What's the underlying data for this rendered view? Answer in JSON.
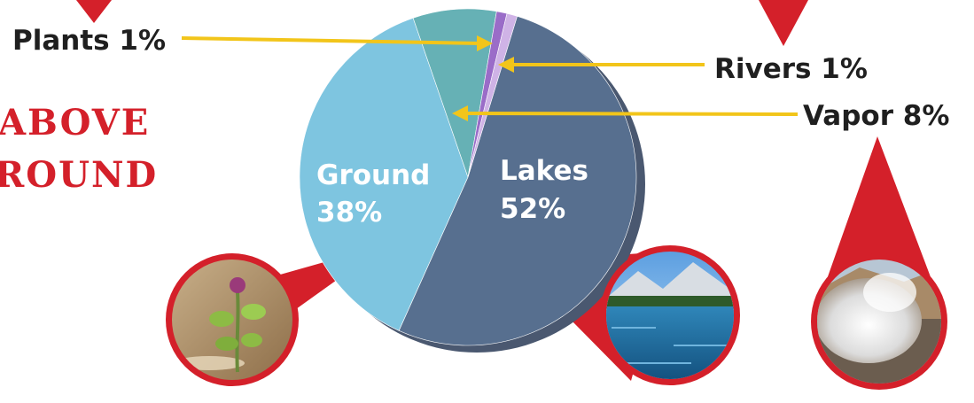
{
  "heading": {
    "line1": "ABOVE",
    "line2": "ROUND"
  },
  "colors": {
    "accent_red": "#d4202a",
    "arrow_yellow": "#f2c51a",
    "text_dark": "#1f1f1f"
  },
  "chart_data": {
    "type": "pie",
    "title": "",
    "slices": [
      {
        "name": "Lakes",
        "value": 52,
        "label_line1": "Lakes",
        "label_line2": "52%",
        "color": "#576f8f"
      },
      {
        "name": "Ground",
        "value": 38,
        "label_line1": "Ground",
        "label_line2": "38%",
        "color": "#7ec5e0"
      },
      {
        "name": "Vapor",
        "value": 8,
        "color": "#66b1b5"
      },
      {
        "name": "Plants",
        "value": 1,
        "color": "#9a6cc8"
      },
      {
        "name": "Rivers",
        "value": 1,
        "color": "#cfb3e6"
      }
    ],
    "callouts": [
      {
        "text": "Plants 1%",
        "slice": "Plants"
      },
      {
        "text": "Rivers 1%",
        "slice": "Rivers"
      },
      {
        "text": "Vapor 8%",
        "slice": "Vapor"
      }
    ]
  },
  "photos": [
    {
      "icon": "plant-sprout-photo",
      "subject": "Ground"
    },
    {
      "icon": "mountain-lake-photo",
      "subject": "Lakes"
    },
    {
      "icon": "steam-vent-photo",
      "subject": "Vapor"
    }
  ]
}
